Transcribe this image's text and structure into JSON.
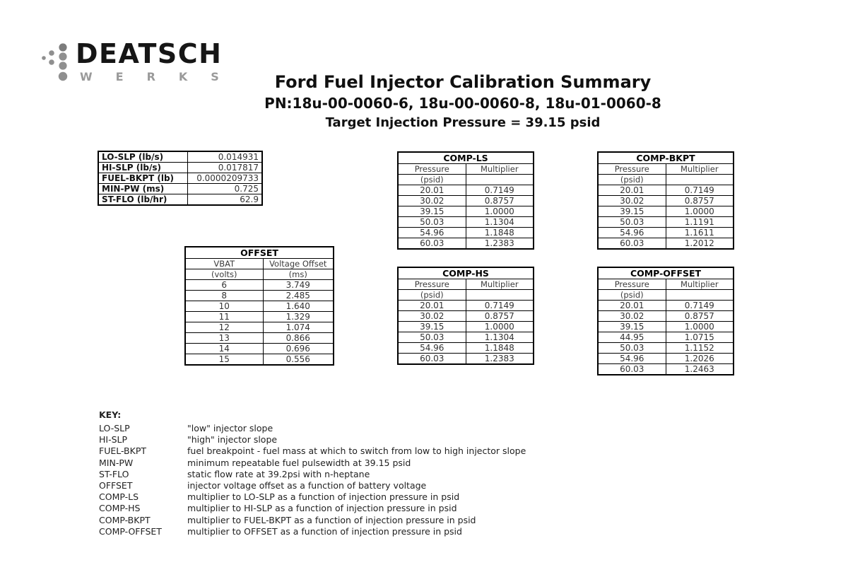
{
  "logo": {
    "brand_top": "DEATSCH",
    "brand_bottom": "WERKS"
  },
  "header": {
    "title": "Ford Fuel Injector Calibration Summary",
    "part_numbers": "PN:18u-00-0060-6, 18u-00-0060-8, 18u-01-0060-8",
    "target_pressure": "Target Injection Pressure = 39.15 psid"
  },
  "params_table": {
    "rows": [
      {
        "label": "LO-SLP (lb/s)",
        "value": "0.014931"
      },
      {
        "label": "HI-SLP (lb/s)",
        "value": "0.017817"
      },
      {
        "label": "FUEL-BKPT (lb)",
        "value": "0.0000209733"
      },
      {
        "label": "MIN-PW (ms)",
        "value": "0.725"
      },
      {
        "label": "ST-FLO (lb/hr)",
        "value": "62.9"
      }
    ]
  },
  "offset_table": {
    "title": "OFFSET",
    "col1_header": "VBAT",
    "col1_unit": "(volts)",
    "col2_header": "Voltage Offset",
    "col2_unit": "(ms)",
    "rows": [
      [
        "6",
        "3.749"
      ],
      [
        "8",
        "2.485"
      ],
      [
        "10",
        "1.640"
      ],
      [
        "11",
        "1.329"
      ],
      [
        "12",
        "1.074"
      ],
      [
        "13",
        "0.866"
      ],
      [
        "14",
        "0.696"
      ],
      [
        "15",
        "0.556"
      ]
    ]
  },
  "comp_tables": [
    {
      "title": "COMP-LS",
      "col1_header": "Pressure",
      "col1_unit": "(psid)",
      "col2_header": "Multiplier",
      "col2_unit": "",
      "rows": [
        [
          "20.01",
          "0.7149"
        ],
        [
          "30.02",
          "0.8757"
        ],
        [
          "39.15",
          "1.0000"
        ],
        [
          "50.03",
          "1.1304"
        ],
        [
          "54.96",
          "1.1848"
        ],
        [
          "60.03",
          "1.2383"
        ]
      ]
    },
    {
      "title": "COMP-BKPT",
      "col1_header": "Pressure",
      "col1_unit": "(psid)",
      "col2_header": "Multiplier",
      "col2_unit": "",
      "rows": [
        [
          "20.01",
          "0.7149"
        ],
        [
          "30.02",
          "0.8757"
        ],
        [
          "39.15",
          "1.0000"
        ],
        [
          "50.03",
          "1.1191"
        ],
        [
          "54.96",
          "1.1611"
        ],
        [
          "60.03",
          "1.2012"
        ]
      ]
    },
    {
      "title": "COMP-HS",
      "col1_header": "Pressure",
      "col1_unit": "(psid)",
      "col2_header": "Multiplier",
      "col2_unit": "",
      "rows": [
        [
          "20.01",
          "0.7149"
        ],
        [
          "30.02",
          "0.8757"
        ],
        [
          "39.15",
          "1.0000"
        ],
        [
          "50.03",
          "1.1304"
        ],
        [
          "54.96",
          "1.1848"
        ],
        [
          "60.03",
          "1.2383"
        ]
      ]
    },
    {
      "title": "COMP-OFFSET",
      "col1_header": "Pressure",
      "col1_unit": "(psid)",
      "col2_header": "Multiplier",
      "col2_unit": "",
      "rows": [
        [
          "20.01",
          "0.7149"
        ],
        [
          "30.02",
          "0.8757"
        ],
        [
          "39.15",
          "1.0000"
        ],
        [
          "44.95",
          "1.0715"
        ],
        [
          "50.03",
          "1.1152"
        ],
        [
          "54.96",
          "1.2026"
        ],
        [
          "60.03",
          "1.2463"
        ]
      ]
    }
  ],
  "key": {
    "heading": "KEY:",
    "entries": [
      {
        "term": "LO-SLP",
        "definition": "\"low\" injector slope"
      },
      {
        "term": "HI-SLP",
        "definition": "\"high\" injector slope"
      },
      {
        "term": "FUEL-BKPT",
        "definition": "fuel breakpoint - fuel mass at which to switch from low to high injector slope"
      },
      {
        "term": "MIN-PW",
        "definition": "minimum repeatable fuel pulsewidth at 39.15 psid"
      },
      {
        "term": "ST-FLO",
        "definition": "static flow rate at 39.2psi with n-heptane"
      },
      {
        "term": "OFFSET",
        "definition": "injector voltage offset as a function of battery voltage"
      },
      {
        "term": "COMP-LS",
        "definition": "multiplier to LO-SLP as a function of injection pressure in psid"
      },
      {
        "term": "COMP-HS",
        "definition": "multiplier to HI-SLP as a function of injection pressure in psid"
      },
      {
        "term": "COMP-BKPT",
        "definition": "multiplier to FUEL-BKPT as a function of injection pressure in psid"
      },
      {
        "term": "COMP-OFFSET",
        "definition": "multiplier to OFFSET as a function of injection pressure in psid"
      }
    ]
  },
  "colors": {
    "text": "#222222",
    "border": "#000000",
    "logo_gray": "#8f8f8f"
  }
}
